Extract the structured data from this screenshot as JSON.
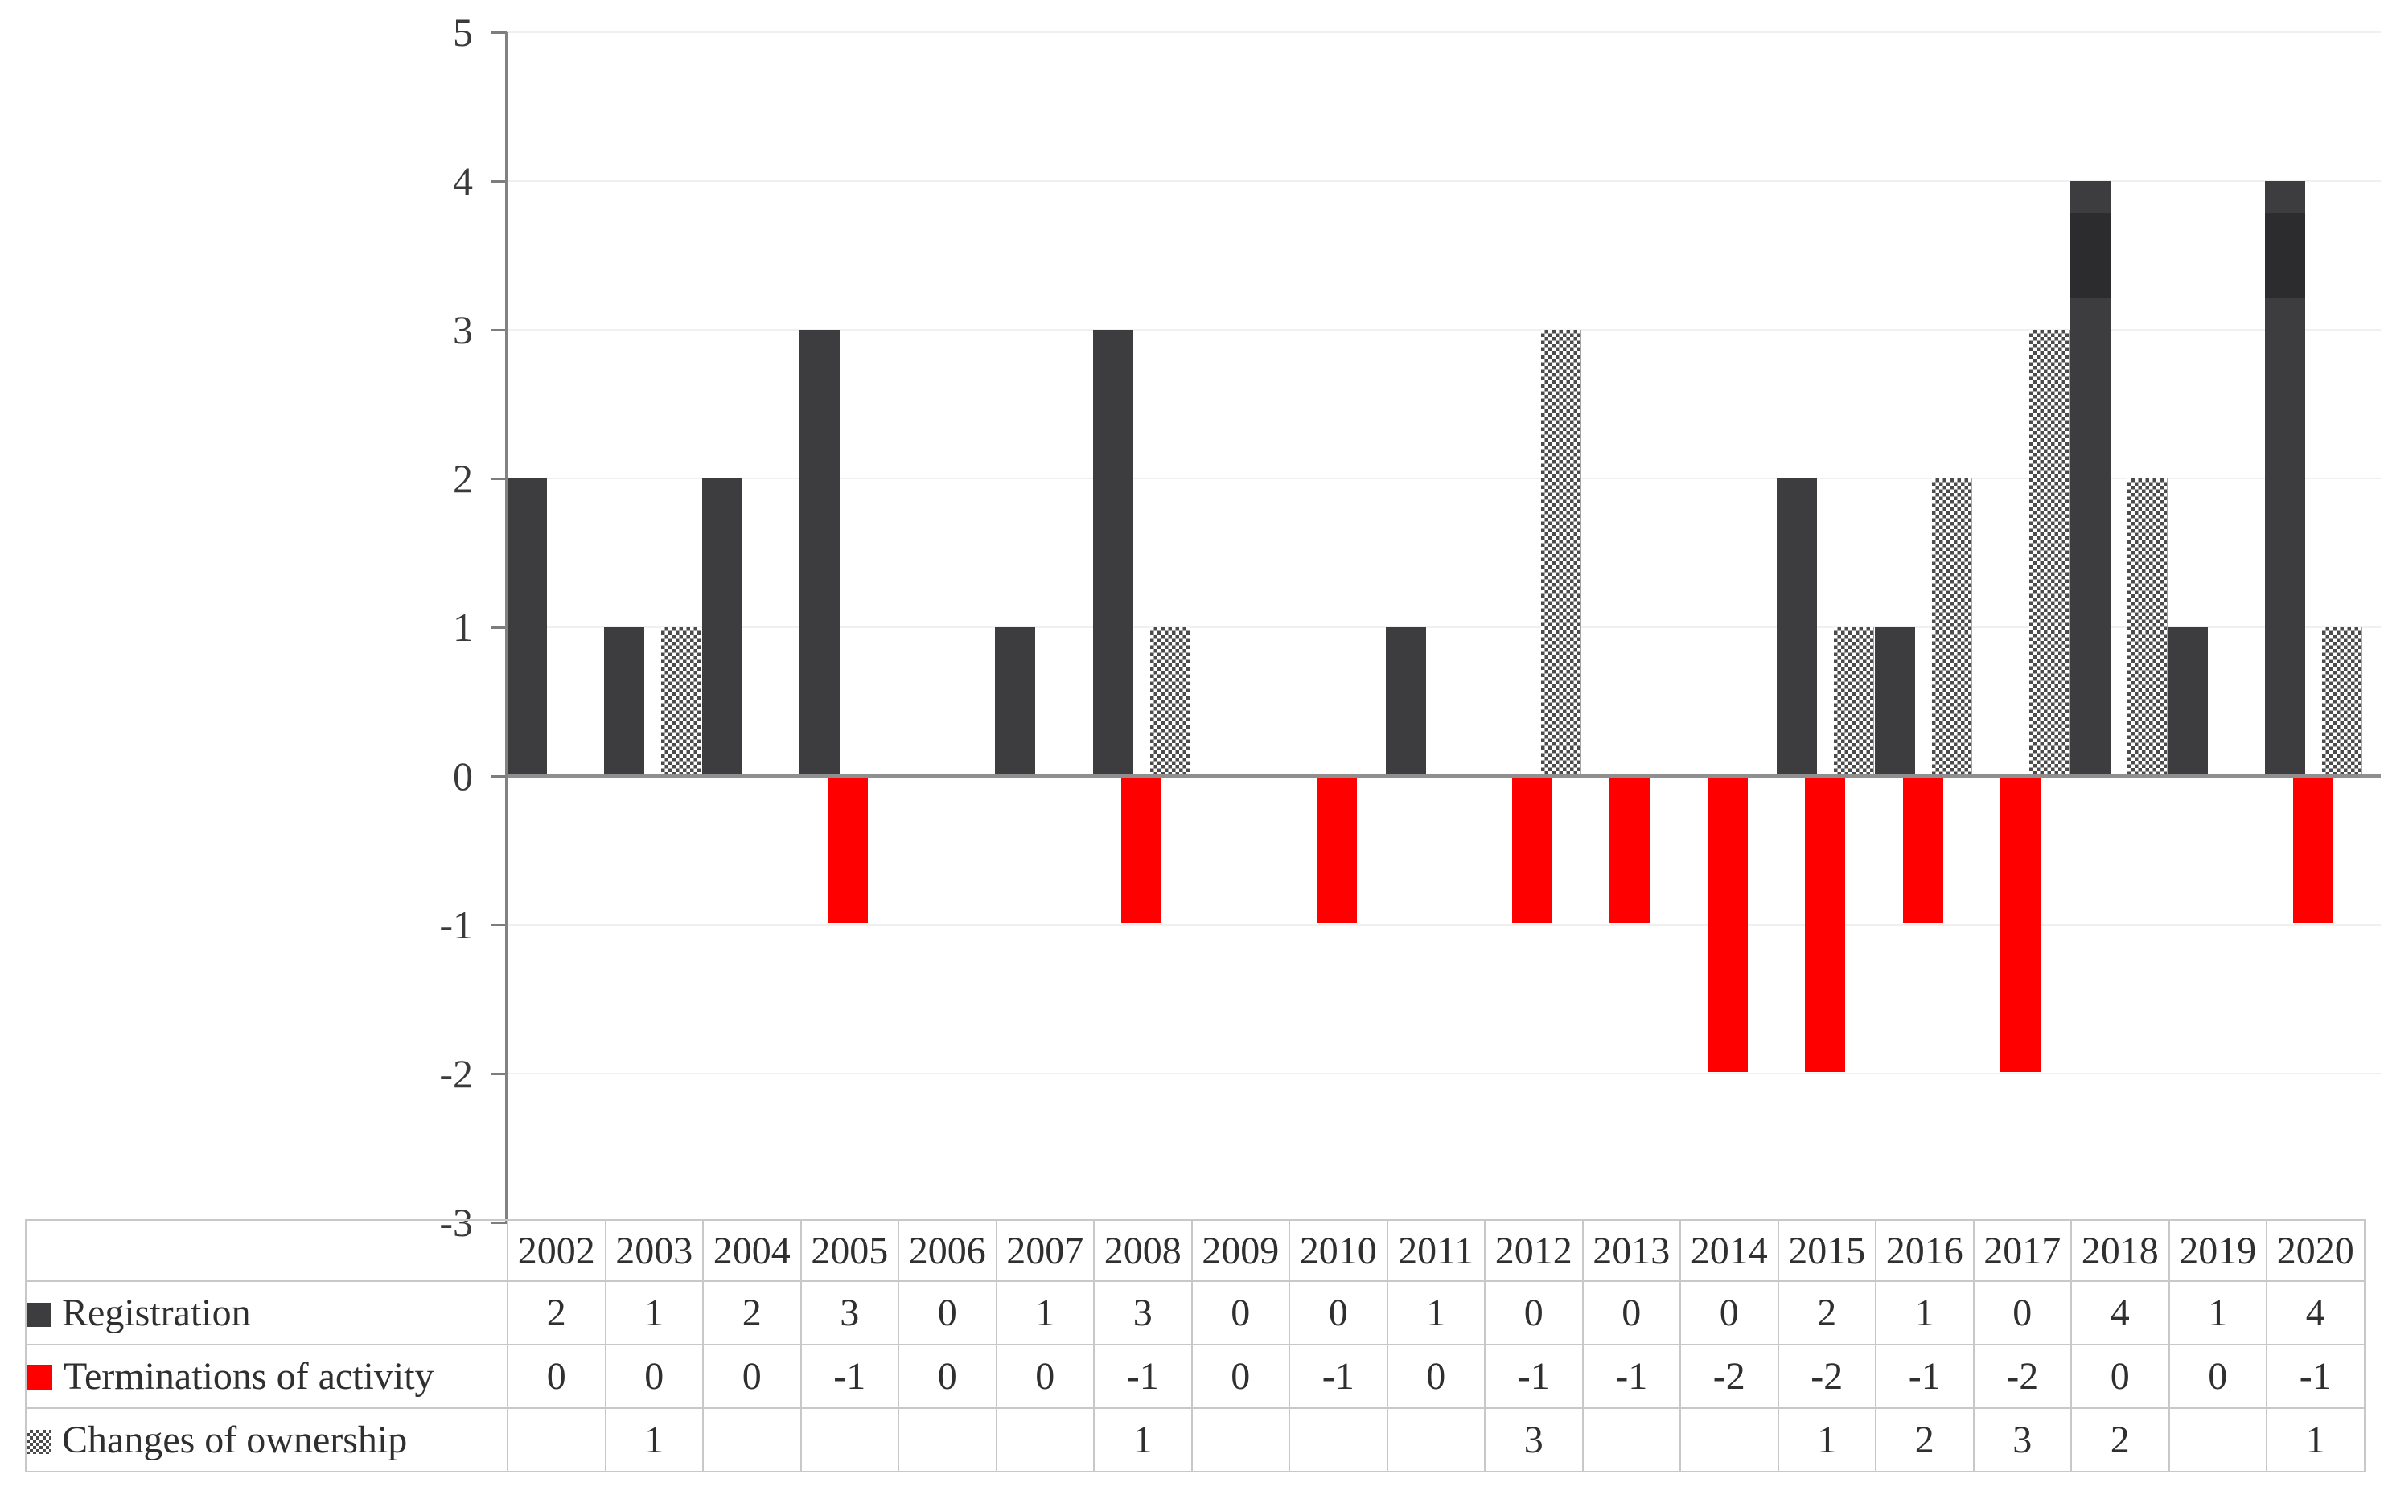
{
  "figure": {
    "background": "#ffffff"
  },
  "chart_data": {
    "type": "bar",
    "title": "",
    "xlabel": "",
    "ylabel": "",
    "categories": [
      "2002",
      "2003",
      "2004",
      "2005",
      "2006",
      "2007",
      "2008",
      "2009",
      "2010",
      "2011",
      "2012",
      "2013",
      "2014",
      "2015",
      "2016",
      "2017",
      "2018",
      "2019",
      "2020"
    ],
    "series": [
      {
        "name": "Registration",
        "color": "#3d3d3f",
        "band_color": "#2c2c2e",
        "values": [
          2,
          1,
          2,
          3,
          0,
          1,
          3,
          0,
          0,
          1,
          0,
          0,
          0,
          2,
          1,
          0,
          4,
          1,
          4
        ]
      },
      {
        "name": "Terminations of activity",
        "color": "#ff0000",
        "values": [
          0,
          0,
          0,
          -1,
          0,
          0,
          -1,
          0,
          -1,
          0,
          -1,
          -1,
          -2,
          -2,
          -1,
          -2,
          0,
          0,
          -1
        ]
      },
      {
        "name": "Changes of ownership",
        "pattern": "checkerboard",
        "pattern_dark": "#4b4b4b",
        "pattern_light": "#ffffff",
        "values": [
          null,
          1,
          null,
          null,
          null,
          null,
          1,
          null,
          null,
          null,
          3,
          null,
          null,
          1,
          2,
          3,
          2,
          null,
          1
        ]
      }
    ],
    "ylim": [
      -3,
      5
    ],
    "yticks": [
      5,
      4,
      3,
      2,
      1,
      0,
      -1,
      -2,
      -3
    ],
    "grid": true,
    "gridline_color": "#f0f0f0",
    "zero_line_color": "#8f8f8f",
    "axis_line_color": "#828282",
    "tick_color": "#7d7d7d",
    "axis_label_color": "#3a3a3a",
    "legend_position": "table-left-column"
  },
  "table": {
    "corner_label": "",
    "border_color": "#c8c8c8",
    "text_color": "#2f2f2f"
  }
}
